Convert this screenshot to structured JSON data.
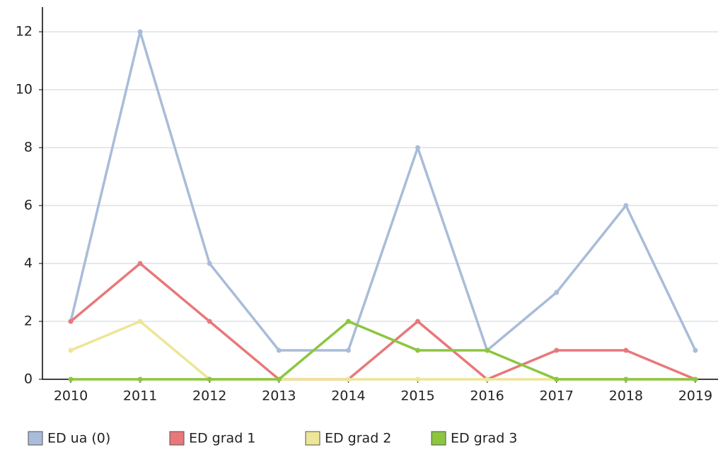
{
  "chart_data": {
    "type": "line",
    "categories": [
      "2010",
      "2011",
      "2012",
      "2013",
      "2014",
      "2015",
      "2016",
      "2017",
      "2018",
      "2019"
    ],
    "series": [
      {
        "name": "ED ua (0)",
        "color": "#a9bcd9",
        "values": [
          2,
          12,
          4,
          1,
          1,
          8,
          1,
          3,
          6,
          1
        ]
      },
      {
        "name": "ED grad 1",
        "color": "#e8787a",
        "values": [
          2,
          4,
          2,
          0,
          0,
          2,
          0,
          1,
          1,
          0
        ]
      },
      {
        "name": "ED grad 2",
        "color": "#ede597",
        "values": [
          1,
          2,
          0,
          0,
          0,
          0,
          0,
          0,
          0,
          0
        ]
      },
      {
        "name": "ED grad 3",
        "color": "#8cc63f",
        "values": [
          0,
          0,
          0,
          0,
          2,
          1,
          1,
          0,
          0,
          0
        ]
      }
    ],
    "ylim": [
      0,
      13
    ],
    "yticks": [
      0,
      2,
      4,
      6,
      8,
      10,
      12
    ],
    "grid": true,
    "legend": "bottom-left"
  }
}
